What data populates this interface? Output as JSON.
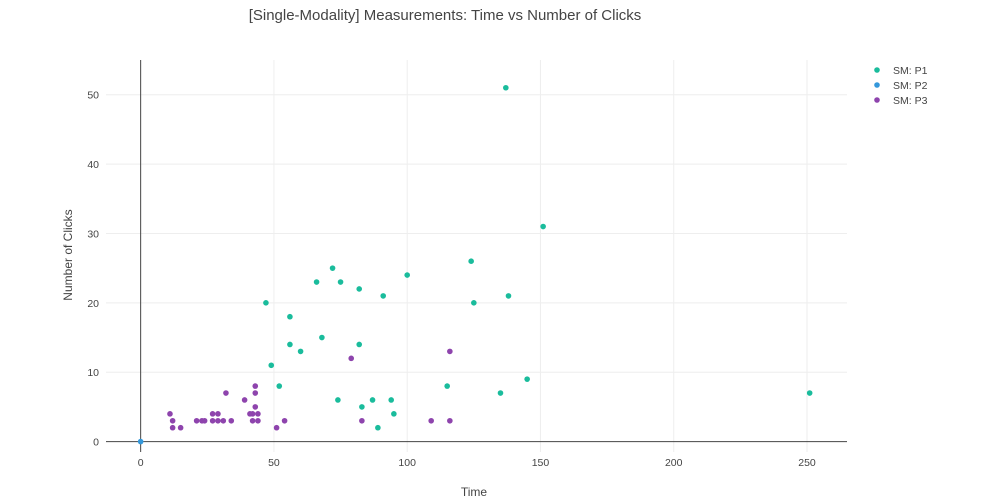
{
  "chart_data": {
    "type": "scatter",
    "title": "[Single-Modality] Measurements: Time vs Number of Clicks",
    "xlabel": "Time",
    "ylabel": "Number of Clicks",
    "xlim": [
      -13,
      265
    ],
    "ylim": [
      -1.5,
      55
    ],
    "xticks": [
      0,
      50,
      100,
      150,
      200,
      250
    ],
    "yticks": [
      0,
      10,
      20,
      30,
      40,
      50
    ],
    "grid": true,
    "legend_position": "top-right",
    "series": [
      {
        "name": "SM: P1",
        "color": "#1abc9c",
        "points": [
          [
            47,
            20
          ],
          [
            49,
            11
          ],
          [
            52,
            8
          ],
          [
            56,
            18
          ],
          [
            56,
            14
          ],
          [
            60,
            13
          ],
          [
            66,
            23
          ],
          [
            68,
            15
          ],
          [
            72,
            25
          ],
          [
            74,
            6
          ],
          [
            75,
            23
          ],
          [
            82,
            22
          ],
          [
            82,
            14
          ],
          [
            83,
            5
          ],
          [
            87,
            6
          ],
          [
            89,
            2
          ],
          [
            91,
            21
          ],
          [
            94,
            6
          ],
          [
            95,
            4
          ],
          [
            100,
            24
          ],
          [
            115,
            8
          ],
          [
            124,
            26
          ],
          [
            125,
            20
          ],
          [
            135,
            7
          ],
          [
            137,
            51
          ],
          [
            138,
            21
          ],
          [
            145,
            9
          ],
          [
            151,
            31
          ],
          [
            251,
            7
          ]
        ]
      },
      {
        "name": "SM: P2",
        "color": "#3498db",
        "points": [
          [
            0,
            0
          ]
        ]
      },
      {
        "name": "SM: P3",
        "color": "#8e44ad",
        "points": [
          [
            11,
            4
          ],
          [
            12,
            3
          ],
          [
            12,
            2
          ],
          [
            15,
            2
          ],
          [
            21,
            3
          ],
          [
            23,
            3
          ],
          [
            24,
            3
          ],
          [
            27,
            4
          ],
          [
            27,
            3
          ],
          [
            29,
            4
          ],
          [
            29,
            3
          ],
          [
            31,
            3
          ],
          [
            32,
            7
          ],
          [
            34,
            3
          ],
          [
            39,
            6
          ],
          [
            41,
            4
          ],
          [
            42,
            3
          ],
          [
            42,
            4
          ],
          [
            43,
            8
          ],
          [
            43,
            7
          ],
          [
            43,
            5
          ],
          [
            44,
            3
          ],
          [
            44,
            4
          ],
          [
            51,
            2
          ],
          [
            54,
            3
          ],
          [
            79,
            12
          ],
          [
            83,
            3
          ],
          [
            109,
            3
          ],
          [
            116,
            13
          ],
          [
            116,
            3
          ]
        ]
      }
    ]
  }
}
